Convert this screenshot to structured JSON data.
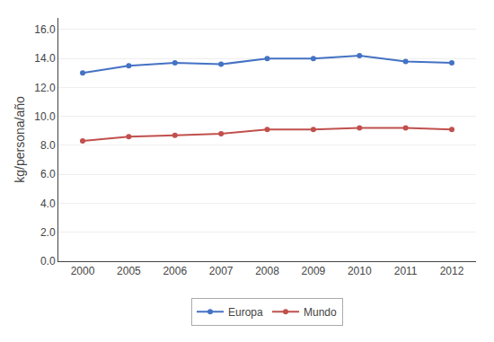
{
  "chart_data": {
    "type": "line",
    "categories": [
      "2000",
      "2005",
      "2006",
      "2007",
      "2008",
      "2009",
      "2010",
      "2011",
      "2012"
    ],
    "series": [
      {
        "name": "Europa",
        "color": "#4472C4",
        "marker": "circle",
        "values": [
          13.0,
          13.5,
          13.7,
          13.6,
          14.0,
          14.0,
          14.2,
          13.8,
          13.7
        ]
      },
      {
        "name": "Mundo",
        "color": "#C0504D",
        "marker": "circle",
        "values": [
          8.3,
          8.6,
          8.7,
          8.8,
          9.1,
          9.1,
          9.2,
          9.2,
          9.1
        ]
      }
    ],
    "ylabel": "kg/persona/año",
    "ylim": [
      0.0,
      16.8
    ],
    "yticks": [
      {
        "value": 0.0,
        "label": "0.0"
      },
      {
        "value": 2.0,
        "label": "2.0"
      },
      {
        "value": 4.0,
        "label": "4.0"
      },
      {
        "value": 6.0,
        "label": "6.0"
      },
      {
        "value": 8.0,
        "label": "8.0"
      },
      {
        "value": 10.0,
        "label": "10.0"
      },
      {
        "value": 12.0,
        "label": "12.0"
      },
      {
        "value": 14.0,
        "label": "14.0"
      },
      {
        "value": 16.0,
        "label": "16.0"
      }
    ],
    "grid": true,
    "legend": "bottom"
  }
}
